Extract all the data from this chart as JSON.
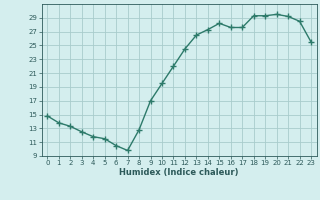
{
  "x": [
    0,
    1,
    2,
    3,
    4,
    5,
    6,
    7,
    8,
    9,
    10,
    11,
    12,
    13,
    14,
    15,
    16,
    17,
    18,
    19,
    20,
    21,
    22,
    23
  ],
  "y": [
    14.8,
    13.8,
    13.3,
    12.5,
    11.8,
    11.5,
    10.5,
    9.8,
    12.8,
    17.0,
    19.5,
    22.0,
    24.5,
    26.5,
    27.3,
    28.2,
    27.6,
    27.6,
    29.3,
    29.3,
    29.5,
    29.2,
    28.5,
    25.5
  ],
  "xlabel": "Humidex (Indice chaleur)",
  "xlim": [
    -0.5,
    23.5
  ],
  "ylim": [
    9,
    31
  ],
  "yticks": [
    9,
    11,
    13,
    15,
    17,
    19,
    21,
    23,
    25,
    27,
    29
  ],
  "xticks": [
    0,
    1,
    2,
    3,
    4,
    5,
    6,
    7,
    8,
    9,
    10,
    11,
    12,
    13,
    14,
    15,
    16,
    17,
    18,
    19,
    20,
    21,
    22,
    23
  ],
  "line_color": "#2d7a6a",
  "marker_color": "#2d7a6a",
  "bg_color": "#d4eeee",
  "grid_color": "#a8cccc",
  "tick_label_color": "#2d5a5a",
  "xlabel_color": "#2d5a5a"
}
